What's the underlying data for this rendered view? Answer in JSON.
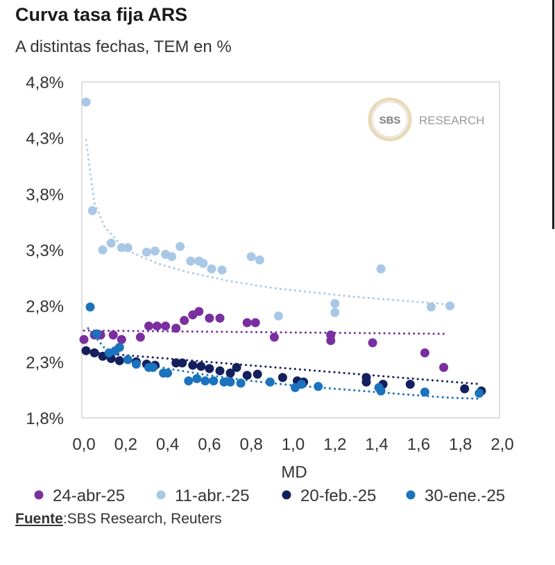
{
  "chart_data": {
    "type": "scatter",
    "title": "Curva tasa fija ARS",
    "subtitle": "A distintas fechas, TEM en %",
    "xlabel": "MD",
    "ylabel": "",
    "xlim": [
      0.0,
      2.0
    ],
    "ylim": [
      1.8,
      4.8
    ],
    "x_ticks": [
      "0,0",
      "0,2",
      "0,4",
      "0,6",
      "0,8",
      "1,0",
      "1,2",
      "1,4",
      "1,6",
      "1,8",
      "2,0"
    ],
    "y_ticks": [
      "1,8%",
      "2,3%",
      "2,8%",
      "3,3%",
      "3,8%",
      "4,3%",
      "4,8%"
    ],
    "watermark": {
      "logo": "SBS",
      "text": "RESEARCH"
    },
    "series": [
      {
        "name": "24-abr-25",
        "color": "#7a2fa0",
        "trend": {
          "type": "linear",
          "points": [
            [
              0.0,
              2.58
            ],
            [
              1.73,
              2.55
            ]
          ]
        },
        "points": [
          [
            0.0,
            2.5
          ],
          [
            0.05,
            2.54
          ],
          [
            0.08,
            2.54
          ],
          [
            0.14,
            2.54
          ],
          [
            0.18,
            2.5
          ],
          [
            0.27,
            2.52
          ],
          [
            0.31,
            2.62
          ],
          [
            0.35,
            2.62
          ],
          [
            0.39,
            2.62
          ],
          [
            0.44,
            2.6
          ],
          [
            0.48,
            2.67
          ],
          [
            0.52,
            2.72
          ],
          [
            0.55,
            2.75
          ],
          [
            0.6,
            2.69
          ],
          [
            0.65,
            2.69
          ],
          [
            0.78,
            2.65
          ],
          [
            0.82,
            2.65
          ],
          [
            0.91,
            2.52
          ],
          [
            1.18,
            2.54
          ],
          [
            1.18,
            2.49
          ],
          [
            1.38,
            2.47
          ],
          [
            1.63,
            2.38
          ],
          [
            1.72,
            2.25
          ]
        ]
      },
      {
        "name": "11-abr.-25",
        "color": "#a8c8e6",
        "trend": {
          "type": "log",
          "points": [
            [
              0.01,
              4.28
            ],
            [
              0.05,
              3.72
            ],
            [
              0.1,
              3.5
            ],
            [
              0.2,
              3.3
            ],
            [
              0.35,
              3.18
            ],
            [
              0.5,
              3.1
            ],
            [
              0.7,
              3.02
            ],
            [
              0.9,
              2.96
            ],
            [
              1.1,
              2.92
            ],
            [
              1.3,
              2.88
            ],
            [
              1.5,
              2.85
            ],
            [
              1.7,
              2.82
            ],
            [
              1.75,
              2.81
            ]
          ]
        },
        "points": [
          [
            0.01,
            4.62
          ],
          [
            0.04,
            3.65
          ],
          [
            0.09,
            3.3
          ],
          [
            0.13,
            3.36
          ],
          [
            0.18,
            3.32
          ],
          [
            0.21,
            3.32
          ],
          [
            0.3,
            3.28
          ],
          [
            0.34,
            3.29
          ],
          [
            0.39,
            3.26
          ],
          [
            0.42,
            3.24
          ],
          [
            0.46,
            3.33
          ],
          [
            0.51,
            3.2
          ],
          [
            0.55,
            3.2
          ],
          [
            0.57,
            3.18
          ],
          [
            0.61,
            3.13
          ],
          [
            0.66,
            3.12
          ],
          [
            0.8,
            3.24
          ],
          [
            0.84,
            3.21
          ],
          [
            0.93,
            2.71
          ],
          [
            1.2,
            2.82
          ],
          [
            1.2,
            2.74
          ],
          [
            1.42,
            3.13
          ],
          [
            1.66,
            2.79
          ],
          [
            1.75,
            2.8
          ]
        ]
      },
      {
        "name": "20-feb.-25",
        "color": "#14205e",
        "trend": {
          "type": "linear",
          "points": [
            [
              0.0,
              2.39
            ],
            [
              1.9,
              2.1
            ]
          ]
        },
        "points": [
          [
            0.01,
            2.4
          ],
          [
            0.05,
            2.38
          ],
          [
            0.09,
            2.35
          ],
          [
            0.13,
            2.33
          ],
          [
            0.17,
            2.31
          ],
          [
            0.25,
            2.3
          ],
          [
            0.3,
            2.28
          ],
          [
            0.34,
            2.27
          ],
          [
            0.44,
            2.29
          ],
          [
            0.47,
            2.29
          ],
          [
            0.52,
            2.27
          ],
          [
            0.56,
            2.26
          ],
          [
            0.6,
            2.24
          ],
          [
            0.65,
            2.22
          ],
          [
            0.7,
            2.2
          ],
          [
            0.73,
            2.25
          ],
          [
            0.78,
            2.18
          ],
          [
            0.83,
            2.19
          ],
          [
            0.95,
            2.16
          ],
          [
            1.02,
            2.13
          ],
          [
            1.05,
            2.12
          ],
          [
            1.35,
            2.16
          ],
          [
            1.35,
            2.12
          ],
          [
            1.43,
            2.1
          ],
          [
            1.56,
            2.1
          ],
          [
            1.82,
            2.06
          ],
          [
            1.9,
            2.04
          ]
        ]
      },
      {
        "name": "30-ene.-25",
        "color": "#1a73bd",
        "trend": {
          "type": "log",
          "points": [
            [
              0.02,
              2.6
            ],
            [
              0.1,
              2.42
            ],
            [
              0.2,
              2.32
            ],
            [
              0.4,
              2.24
            ],
            [
              0.6,
              2.18
            ],
            [
              0.8,
              2.13
            ],
            [
              1.0,
              2.09
            ],
            [
              1.2,
              2.06
            ],
            [
              1.4,
              2.03
            ],
            [
              1.6,
              2.0
            ],
            [
              1.75,
              1.98
            ],
            [
              1.9,
              1.97
            ]
          ]
        },
        "points": [
          [
            0.03,
            2.79
          ],
          [
            0.06,
            2.55
          ],
          [
            0.12,
            2.38
          ],
          [
            0.15,
            2.4
          ],
          [
            0.17,
            2.43
          ],
          [
            0.21,
            2.32
          ],
          [
            0.25,
            2.28
          ],
          [
            0.31,
            2.25
          ],
          [
            0.33,
            2.25
          ],
          [
            0.38,
            2.2
          ],
          [
            0.4,
            2.2
          ],
          [
            0.5,
            2.13
          ],
          [
            0.54,
            2.15
          ],
          [
            0.58,
            2.13
          ],
          [
            0.62,
            2.13
          ],
          [
            0.67,
            2.12
          ],
          [
            0.7,
            2.12
          ],
          [
            0.75,
            2.11
          ],
          [
            0.89,
            2.12
          ],
          [
            1.01,
            2.07
          ],
          [
            1.04,
            2.1
          ],
          [
            1.12,
            2.08
          ],
          [
            1.41,
            2.07
          ],
          [
            1.42,
            2.04
          ],
          [
            1.63,
            2.03
          ],
          [
            1.89,
            2.02
          ]
        ]
      }
    ]
  },
  "source": {
    "label": "Fuente",
    "text": ":SBS Research, Reuters"
  }
}
